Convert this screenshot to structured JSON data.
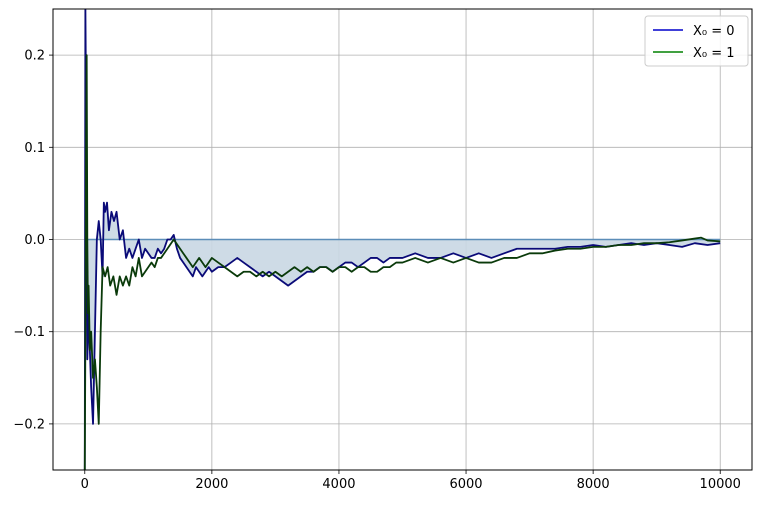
{
  "chart_data": {
    "type": "line",
    "title": "",
    "xlabel": "",
    "ylabel": "",
    "xlim": [
      -500,
      10500
    ],
    "ylim": [
      -0.25,
      0.25
    ],
    "x_ticks": [
      0,
      2000,
      4000,
      6000,
      8000,
      10000
    ],
    "x_tick_labels": [
      "0",
      "2000",
      "4000",
      "6000",
      "8000",
      "10000"
    ],
    "y_ticks": [
      -0.2,
      -0.1,
      0.0,
      0.1,
      0.2
    ],
    "y_tick_labels": [
      "−0.2",
      "−0.1",
      "0.0",
      "0.1",
      "0.2"
    ],
    "grid": true,
    "legend_position": "upper-right",
    "reference_line": {
      "y": 0.0,
      "color": "#5b8db8"
    },
    "fill_color": "#c9d7e3",
    "series": [
      {
        "name": "X₀ = 0",
        "legend_color": "#0000cc",
        "line_color": "#0a0a78",
        "x": [
          0,
          10,
          20,
          30,
          40,
          60,
          80,
          100,
          130,
          160,
          190,
          220,
          250,
          280,
          300,
          320,
          350,
          380,
          420,
          460,
          500,
          550,
          600,
          650,
          700,
          750,
          800,
          850,
          900,
          950,
          1000,
          1050,
          1100,
          1150,
          1200,
          1250,
          1300,
          1350,
          1400,
          1450,
          1500,
          1550,
          1600,
          1650,
          1700,
          1750,
          1800,
          1850,
          1900,
          1950,
          2000,
          2100,
          2200,
          2300,
          2400,
          2500,
          2600,
          2700,
          2800,
          2900,
          3000,
          3100,
          3200,
          3300,
          3400,
          3500,
          3600,
          3700,
          3800,
          3900,
          4000,
          4100,
          4200,
          4300,
          4400,
          4500,
          4600,
          4700,
          4800,
          4900,
          5000,
          5200,
          5400,
          5600,
          5800,
          6000,
          6200,
          6400,
          6600,
          6800,
          7000,
          7200,
          7400,
          7600,
          7800,
          8000,
          8200,
          8400,
          8600,
          8800,
          9000,
          9200,
          9400,
          9600,
          9800,
          10000
        ],
        "y": [
          -0.25,
          0.25,
          0.15,
          -0.05,
          -0.13,
          -0.08,
          -0.12,
          -0.16,
          -0.2,
          -0.1,
          0.0,
          0.02,
          0.0,
          -0.04,
          0.04,
          0.03,
          0.04,
          0.01,
          0.03,
          0.02,
          0.03,
          0.0,
          0.01,
          -0.02,
          -0.01,
          -0.02,
          -0.01,
          -0.0,
          -0.02,
          -0.01,
          -0.015,
          -0.02,
          -0.02,
          -0.01,
          -0.015,
          -0.01,
          -0.0,
          0.0,
          0.005,
          -0.01,
          -0.02,
          -0.025,
          -0.03,
          -0.035,
          -0.04,
          -0.03,
          -0.035,
          -0.04,
          -0.035,
          -0.03,
          -0.035,
          -0.03,
          -0.03,
          -0.025,
          -0.02,
          -0.025,
          -0.03,
          -0.035,
          -0.04,
          -0.035,
          -0.04,
          -0.045,
          -0.05,
          -0.045,
          -0.04,
          -0.035,
          -0.035,
          -0.03,
          -0.03,
          -0.035,
          -0.03,
          -0.025,
          -0.025,
          -0.03,
          -0.025,
          -0.02,
          -0.02,
          -0.025,
          -0.02,
          -0.02,
          -0.02,
          -0.015,
          -0.02,
          -0.02,
          -0.015,
          -0.02,
          -0.015,
          -0.02,
          -0.015,
          -0.01,
          -0.01,
          -0.01,
          -0.01,
          -0.008,
          -0.008,
          -0.006,
          -0.008,
          -0.006,
          -0.004,
          -0.006,
          -0.004,
          -0.006,
          -0.008,
          -0.004,
          -0.006,
          -0.004
        ]
      },
      {
        "name": "X₀ = 1",
        "legend_color": "#008000",
        "line_color": "#0a3a0a",
        "x": [
          0,
          10,
          20,
          30,
          40,
          50,
          60,
          80,
          100,
          130,
          160,
          190,
          220,
          250,
          280,
          320,
          360,
          400,
          450,
          500,
          550,
          600,
          650,
          700,
          750,
          800,
          850,
          900,
          950,
          1000,
          1050,
          1100,
          1150,
          1200,
          1250,
          1300,
          1350,
          1400,
          1450,
          1500,
          1550,
          1600,
          1650,
          1700,
          1750,
          1800,
          1850,
          1900,
          1950,
          2000,
          2100,
          2200,
          2300,
          2400,
          2500,
          2600,
          2700,
          2800,
          2900,
          3000,
          3100,
          3200,
          3300,
          3400,
          3500,
          3600,
          3700,
          3800,
          3900,
          4000,
          4100,
          4200,
          4300,
          4400,
          4500,
          4600,
          4700,
          4800,
          4900,
          5000,
          5200,
          5400,
          5600,
          5800,
          6000,
          6200,
          6400,
          6600,
          6800,
          7000,
          7200,
          7400,
          7600,
          7800,
          8000,
          8200,
          8400,
          8600,
          8800,
          9000,
          9200,
          9400,
          9600,
          9700,
          9800,
          10000
        ],
        "y": [
          -0.25,
          -0.1,
          0.1,
          0.2,
          0.0,
          -0.08,
          -0.05,
          -0.12,
          -0.1,
          -0.15,
          -0.13,
          -0.16,
          -0.2,
          -0.1,
          -0.03,
          -0.04,
          -0.03,
          -0.05,
          -0.04,
          -0.06,
          -0.04,
          -0.05,
          -0.04,
          -0.05,
          -0.03,
          -0.04,
          -0.02,
          -0.04,
          -0.035,
          -0.03,
          -0.025,
          -0.03,
          -0.02,
          -0.02,
          -0.015,
          -0.01,
          -0.005,
          0.0,
          -0.005,
          -0.01,
          -0.015,
          -0.02,
          -0.025,
          -0.03,
          -0.025,
          -0.02,
          -0.025,
          -0.03,
          -0.025,
          -0.02,
          -0.025,
          -0.03,
          -0.035,
          -0.04,
          -0.035,
          -0.035,
          -0.04,
          -0.035,
          -0.04,
          -0.035,
          -0.04,
          -0.035,
          -0.03,
          -0.035,
          -0.03,
          -0.035,
          -0.03,
          -0.03,
          -0.035,
          -0.03,
          -0.03,
          -0.035,
          -0.03,
          -0.03,
          -0.035,
          -0.035,
          -0.03,
          -0.03,
          -0.025,
          -0.025,
          -0.02,
          -0.025,
          -0.02,
          -0.025,
          -0.02,
          -0.025,
          -0.025,
          -0.02,
          -0.02,
          -0.015,
          -0.015,
          -0.012,
          -0.01,
          -0.01,
          -0.008,
          -0.008,
          -0.006,
          -0.006,
          -0.004,
          -0.004,
          -0.003,
          -0.001,
          0.001,
          0.002,
          -0.001,
          -0.002
        ]
      }
    ]
  }
}
